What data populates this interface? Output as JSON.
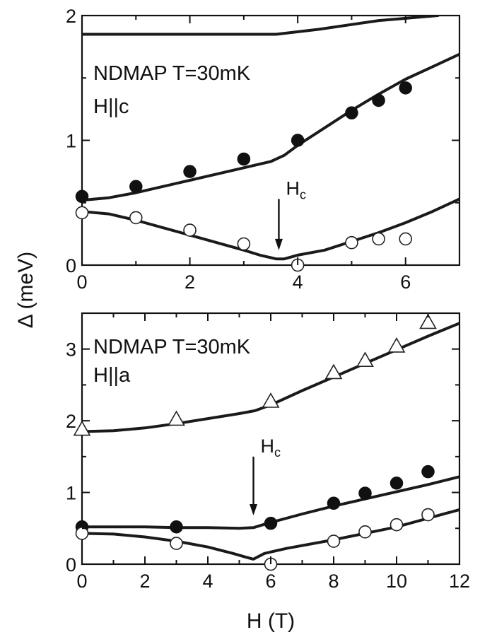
{
  "chart_data": [
    {
      "type": "scatter",
      "annotation_line1": "NDMAP T=30mK",
      "annotation_line2": "H||c",
      "hc_label": "H",
      "hc_subscript": "c",
      "hc_x": 3.65,
      "hc_arrow_from_y": 0.53,
      "hc_arrow_to_y": 0.12,
      "xlim": [
        0,
        7
      ],
      "ylim": [
        0,
        2
      ],
      "xticks": [
        0,
        2,
        4,
        6
      ],
      "yticks": [
        0,
        1,
        2
      ],
      "series": [
        {
          "marker": "filled-circle",
          "x": [
            0,
            1,
            2,
            3,
            4,
            5,
            5.5,
            6
          ],
          "y": [
            0.55,
            0.63,
            0.75,
            0.85,
            1.0,
            1.22,
            1.32,
            1.42
          ]
        },
        {
          "marker": "open-circle",
          "x": [
            0,
            1,
            2,
            3,
            4,
            5,
            5.5,
            6
          ],
          "y": [
            0.42,
            0.38,
            0.28,
            0.17,
            0.0,
            0.18,
            0.21,
            0.21
          ]
        }
      ],
      "curves": [
        {
          "x": [
            0,
            3.6,
            4.4,
            5.5,
            6.6
          ],
          "y": [
            1.85,
            1.85,
            1.89,
            1.96,
            2.0
          ]
        },
        {
          "x": [
            0,
            0.5,
            1,
            1.5,
            2,
            2.5,
            3,
            3.5,
            3.75,
            4,
            4.5,
            5,
            5.5,
            6,
            6.5,
            7
          ],
          "y": [
            0.52,
            0.54,
            0.58,
            0.63,
            0.68,
            0.73,
            0.78,
            0.83,
            0.88,
            0.96,
            1.1,
            1.24,
            1.37,
            1.49,
            1.59,
            1.69
          ]
        },
        {
          "x": [
            0,
            0.5,
            1,
            1.5,
            2,
            2.5,
            3,
            3.3,
            3.6,
            3.75,
            4,
            4.5,
            5,
            5.5,
            6,
            6.5,
            7
          ],
          "y": [
            0.43,
            0.41,
            0.36,
            0.3,
            0.24,
            0.18,
            0.12,
            0.08,
            0.05,
            0.05,
            0.08,
            0.12,
            0.19,
            0.26,
            0.34,
            0.43,
            0.53
          ]
        }
      ]
    },
    {
      "type": "scatter",
      "annotation_line1": "NDMAP T=30mK",
      "annotation_line2": "H||a",
      "hc_label": "H",
      "hc_subscript": "c",
      "hc_x": 5.45,
      "hc_arrow_from_y": 1.5,
      "hc_arrow_to_y": 0.68,
      "ylabel": "Δ (meV)",
      "xlabel": "H (T)",
      "xlim": [
        0,
        12
      ],
      "ylim": [
        0,
        3.5
      ],
      "xticks": [
        0,
        2,
        4,
        6,
        8,
        10,
        12
      ],
      "yticks": [
        0,
        1,
        2,
        3
      ],
      "series": [
        {
          "marker": "open-triangle",
          "x": [
            0,
            3,
            6,
            8,
            9,
            10,
            11
          ],
          "y": [
            1.88,
            2.02,
            2.27,
            2.67,
            2.84,
            3.04,
            3.37
          ]
        },
        {
          "marker": "filled-circle",
          "x": [
            0,
            3,
            6,
            8,
            9,
            10,
            11
          ],
          "y": [
            0.52,
            0.52,
            0.57,
            0.85,
            0.99,
            1.13,
            1.29
          ]
        },
        {
          "marker": "open-circle",
          "x": [
            0,
            3,
            6,
            8,
            9,
            10,
            11
          ],
          "y": [
            0.43,
            0.29,
            0.0,
            0.32,
            0.45,
            0.55,
            0.69
          ]
        }
      ],
      "curves": [
        {
          "x": [
            0,
            1,
            2,
            3,
            4,
            5,
            5.5,
            6,
            7,
            8,
            9,
            10,
            11,
            12
          ],
          "y": [
            1.85,
            1.86,
            1.9,
            1.96,
            2.03,
            2.1,
            2.14,
            2.22,
            2.42,
            2.61,
            2.8,
            2.99,
            3.18,
            3.36
          ]
        },
        {
          "x": [
            0,
            1,
            2,
            3,
            4,
            5,
            5.45,
            5.9,
            7,
            8,
            9,
            10,
            11,
            12
          ],
          "y": [
            0.52,
            0.52,
            0.52,
            0.51,
            0.51,
            0.5,
            0.51,
            0.57,
            0.7,
            0.81,
            0.91,
            1.01,
            1.11,
            1.22
          ]
        },
        {
          "x": [
            0,
            1,
            2,
            3,
            4,
            4.8,
            5.2,
            5.45,
            5.8,
            6.5,
            8,
            9,
            10,
            11,
            12
          ],
          "y": [
            0.43,
            0.42,
            0.38,
            0.32,
            0.24,
            0.15,
            0.1,
            0.07,
            0.15,
            0.22,
            0.34,
            0.43,
            0.52,
            0.64,
            0.76
          ]
        }
      ]
    }
  ]
}
